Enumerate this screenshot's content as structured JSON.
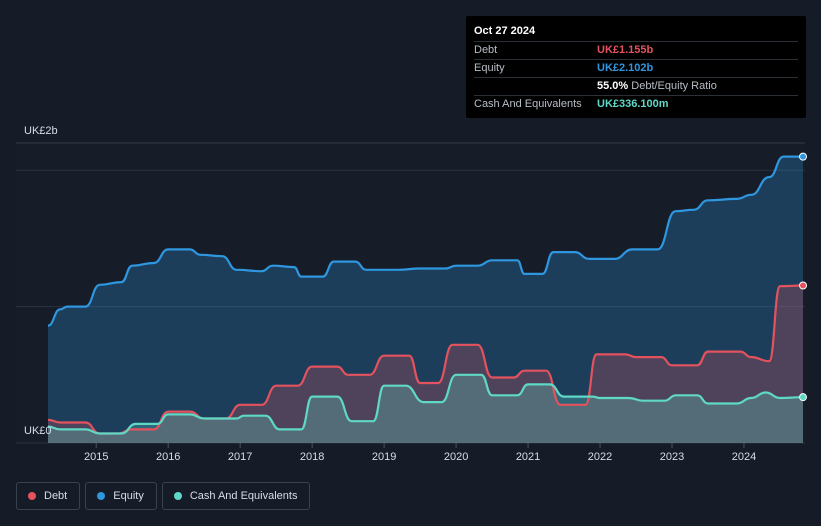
{
  "tooltip": {
    "date": "Oct 27 2024",
    "rows": [
      {
        "label": "Debt",
        "value": "UK£1.155b",
        "color": "#e4525e"
      },
      {
        "label": "Equity",
        "value": "UK£2.102b",
        "color": "#2f96e0"
      },
      {
        "label": "",
        "value": "55.0%",
        "suffix": "Debt/Equity Ratio",
        "color": "#ffffff"
      },
      {
        "label": "Cash And Equivalents",
        "value": "UK£336.100m",
        "color": "#5fd8c6"
      }
    ]
  },
  "legend": [
    {
      "label": "Debt",
      "color": "#e4525e"
    },
    {
      "label": "Equity",
      "color": "#2f96e0"
    },
    {
      "label": "Cash And Equivalents",
      "color": "#5fd8c6"
    }
  ],
  "chart_data": {
    "type": "area",
    "ylabel_top": "UK£2b",
    "ylabel_bottom": "UK£0",
    "ylim": [
      0,
      2.2
    ],
    "xlim": [
      2014.33,
      2024.82
    ],
    "x_ticks": [
      "2015",
      "2016",
      "2017",
      "2018",
      "2019",
      "2020",
      "2021",
      "2022",
      "2023",
      "2024"
    ],
    "series": [
      {
        "name": "Equity",
        "color": "#2f96e0",
        "points": [
          [
            2014.33,
            0.86
          ],
          [
            2014.5,
            0.98
          ],
          [
            2014.6,
            1.0
          ],
          [
            2014.85,
            1.0
          ],
          [
            2015.05,
            1.16
          ],
          [
            2015.35,
            1.18
          ],
          [
            2015.5,
            1.3
          ],
          [
            2015.8,
            1.32
          ],
          [
            2016.0,
            1.42
          ],
          [
            2016.3,
            1.42
          ],
          [
            2016.45,
            1.38
          ],
          [
            2016.75,
            1.37
          ],
          [
            2016.95,
            1.27
          ],
          [
            2017.3,
            1.26
          ],
          [
            2017.45,
            1.3
          ],
          [
            2017.75,
            1.29
          ],
          [
            2017.85,
            1.22
          ],
          [
            2018.15,
            1.22
          ],
          [
            2018.3,
            1.33
          ],
          [
            2018.6,
            1.33
          ],
          [
            2018.75,
            1.27
          ],
          [
            2019.2,
            1.27
          ],
          [
            2019.5,
            1.28
          ],
          [
            2019.85,
            1.28
          ],
          [
            2020.0,
            1.3
          ],
          [
            2020.3,
            1.3
          ],
          [
            2020.5,
            1.34
          ],
          [
            2020.85,
            1.34
          ],
          [
            2020.95,
            1.24
          ],
          [
            2021.2,
            1.24
          ],
          [
            2021.35,
            1.4
          ],
          [
            2021.65,
            1.4
          ],
          [
            2021.85,
            1.35
          ],
          [
            2022.2,
            1.35
          ],
          [
            2022.45,
            1.42
          ],
          [
            2022.8,
            1.42
          ],
          [
            2023.05,
            1.7
          ],
          [
            2023.3,
            1.71
          ],
          [
            2023.5,
            1.78
          ],
          [
            2023.9,
            1.79
          ],
          [
            2024.1,
            1.82
          ],
          [
            2024.35,
            1.95
          ],
          [
            2024.55,
            2.1
          ],
          [
            2024.82,
            2.1
          ]
        ]
      },
      {
        "name": "Debt",
        "color": "#e4525e",
        "points": [
          [
            2014.33,
            0.17
          ],
          [
            2014.5,
            0.15
          ],
          [
            2014.85,
            0.15
          ],
          [
            2015.05,
            0.07
          ],
          [
            2015.3,
            0.07
          ],
          [
            2015.5,
            0.1
          ],
          [
            2015.8,
            0.1
          ],
          [
            2016.0,
            0.23
          ],
          [
            2016.3,
            0.23
          ],
          [
            2016.5,
            0.18
          ],
          [
            2016.8,
            0.18
          ],
          [
            2017.0,
            0.28
          ],
          [
            2017.3,
            0.28
          ],
          [
            2017.5,
            0.42
          ],
          [
            2017.8,
            0.42
          ],
          [
            2018.0,
            0.56
          ],
          [
            2018.35,
            0.56
          ],
          [
            2018.5,
            0.5
          ],
          [
            2018.8,
            0.5
          ],
          [
            2019.0,
            0.64
          ],
          [
            2019.35,
            0.64
          ],
          [
            2019.5,
            0.44
          ],
          [
            2019.75,
            0.44
          ],
          [
            2019.95,
            0.72
          ],
          [
            2020.3,
            0.72
          ],
          [
            2020.5,
            0.48
          ],
          [
            2020.8,
            0.48
          ],
          [
            2020.95,
            0.53
          ],
          [
            2021.25,
            0.53
          ],
          [
            2021.45,
            0.28
          ],
          [
            2021.8,
            0.28
          ],
          [
            2021.95,
            0.65
          ],
          [
            2022.35,
            0.65
          ],
          [
            2022.5,
            0.63
          ],
          [
            2022.85,
            0.63
          ],
          [
            2023.0,
            0.57
          ],
          [
            2023.35,
            0.57
          ],
          [
            2023.5,
            0.67
          ],
          [
            2023.95,
            0.67
          ],
          [
            2024.1,
            0.63
          ],
          [
            2024.35,
            0.6
          ],
          [
            2024.5,
            1.15
          ],
          [
            2024.82,
            1.155
          ]
        ]
      },
      {
        "name": "Cash And Equivalents",
        "color": "#5fd8c6",
        "points": [
          [
            2014.33,
            0.12
          ],
          [
            2014.5,
            0.1
          ],
          [
            2014.85,
            0.1
          ],
          [
            2015.05,
            0.07
          ],
          [
            2015.35,
            0.07
          ],
          [
            2015.55,
            0.14
          ],
          [
            2015.85,
            0.14
          ],
          [
            2016.0,
            0.21
          ],
          [
            2016.3,
            0.21
          ],
          [
            2016.5,
            0.18
          ],
          [
            2016.95,
            0.18
          ],
          [
            2017.05,
            0.2
          ],
          [
            2017.35,
            0.2
          ],
          [
            2017.55,
            0.1
          ],
          [
            2017.85,
            0.1
          ],
          [
            2018.0,
            0.34
          ],
          [
            2018.35,
            0.34
          ],
          [
            2018.55,
            0.16
          ],
          [
            2018.85,
            0.16
          ],
          [
            2019.0,
            0.42
          ],
          [
            2019.3,
            0.42
          ],
          [
            2019.55,
            0.3
          ],
          [
            2019.8,
            0.3
          ],
          [
            2020.0,
            0.5
          ],
          [
            2020.35,
            0.5
          ],
          [
            2020.5,
            0.35
          ],
          [
            2020.85,
            0.35
          ],
          [
            2021.0,
            0.43
          ],
          [
            2021.3,
            0.43
          ],
          [
            2021.5,
            0.34
          ],
          [
            2021.9,
            0.34
          ],
          [
            2022.0,
            0.33
          ],
          [
            2022.4,
            0.33
          ],
          [
            2022.6,
            0.31
          ],
          [
            2022.9,
            0.31
          ],
          [
            2023.05,
            0.35
          ],
          [
            2023.35,
            0.35
          ],
          [
            2023.5,
            0.29
          ],
          [
            2023.9,
            0.29
          ],
          [
            2024.1,
            0.33
          ],
          [
            2024.3,
            0.37
          ],
          [
            2024.5,
            0.33
          ],
          [
            2024.82,
            0.336
          ]
        ]
      }
    ]
  }
}
